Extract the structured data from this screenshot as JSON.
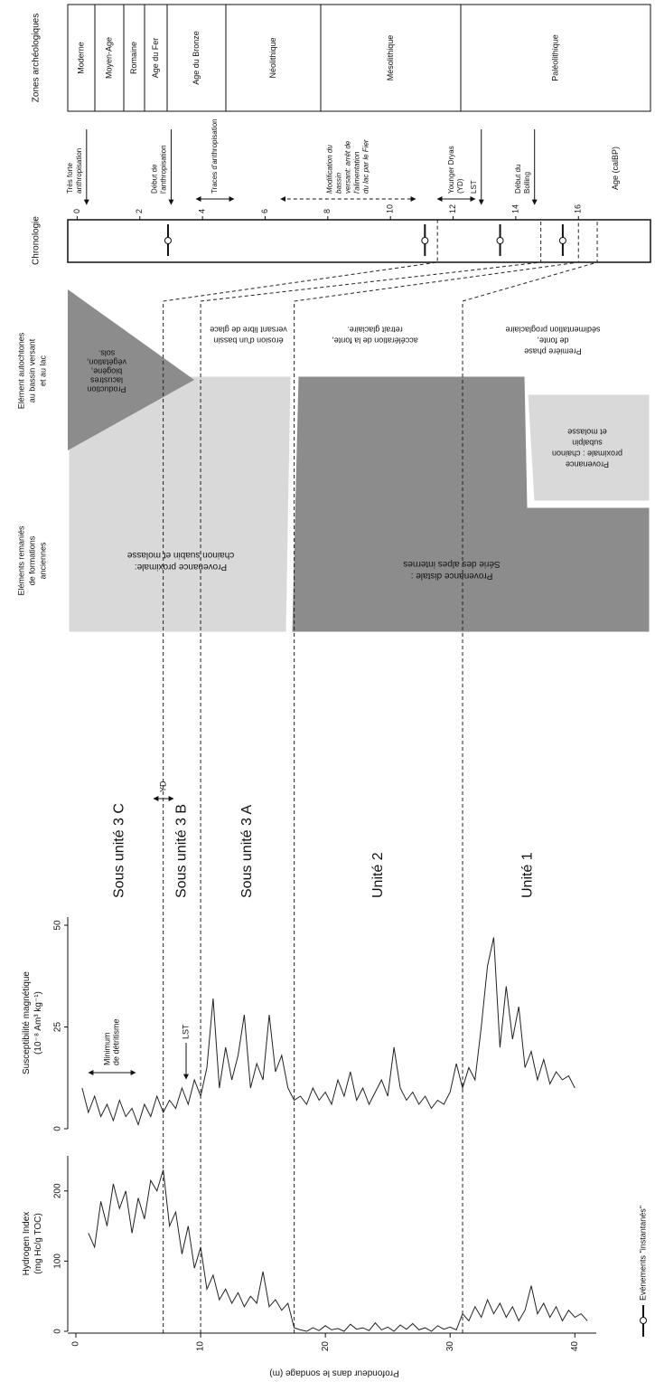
{
  "chart_data": [
    {
      "type": "line",
      "title": [
        "Hydrogen Index",
        "(mg Hc/g TOC)"
      ],
      "xlabel": "Profondeur dans le sondage (m)",
      "x": [
        1,
        1.5,
        2,
        2.5,
        3,
        3.5,
        4,
        4.5,
        5,
        5.5,
        6,
        6.5,
        7,
        7.5,
        8,
        8.5,
        9,
        9.5,
        10,
        10.5,
        11,
        11.5,
        12,
        12.5,
        13,
        13.5,
        14,
        14.5,
        15,
        15.5,
        16,
        16.5,
        17,
        17.5,
        18,
        18.5,
        19,
        19.5,
        20,
        20.5,
        21,
        21.5,
        22,
        22.5,
        23,
        23.5,
        24,
        24.5,
        25,
        25.5,
        26,
        26.5,
        27,
        27.5,
        28,
        28.5,
        29,
        29.5,
        30,
        30.5,
        31,
        31.5,
        32,
        32.5,
        33,
        33.5,
        34,
        34.5,
        35,
        35.5,
        36,
        36.5,
        37,
        37.5,
        38,
        38.5,
        39,
        39.5,
        40,
        40.5,
        41
      ],
      "values": [
        140,
        120,
        185,
        150,
        210,
        175,
        200,
        140,
        190,
        160,
        215,
        200,
        230,
        150,
        170,
        110,
        150,
        90,
        120,
        60,
        80,
        45,
        60,
        40,
        55,
        35,
        50,
        40,
        85,
        35,
        45,
        30,
        40,
        5,
        2,
        0,
        5,
        1,
        8,
        2,
        4,
        0,
        10,
        3,
        5,
        1,
        12,
        2,
        6,
        0,
        9,
        3,
        11,
        2,
        5,
        0,
        8,
        3,
        6,
        2,
        25,
        15,
        35,
        20,
        45,
        25,
        40,
        20,
        35,
        15,
        30,
        65,
        25,
        40,
        20,
        35,
        15,
        30,
        20,
        25,
        15
      ],
      "xlim": [
        0,
        41.5
      ],
      "xticks": [
        0,
        10,
        20,
        30,
        40
      ],
      "ylim": [
        0,
        250
      ],
      "yticks": [
        0,
        100,
        200
      ],
      "color": "#222222"
    },
    {
      "type": "line",
      "title": [
        "Susceptibilité magnétique",
        "(10⁻⁸ Am³ kg⁻¹)"
      ],
      "x": [
        0.5,
        1,
        1.5,
        2,
        2.5,
        3,
        3.5,
        4,
        4.5,
        5,
        5.5,
        6,
        6.5,
        7,
        7.5,
        8,
        8.5,
        9,
        9.5,
        10,
        10.5,
        11,
        11.5,
        12,
        12.5,
        13,
        13.5,
        14,
        14.5,
        15,
        15.5,
        16,
        16.5,
        17,
        17.5,
        18,
        18.5,
        19,
        19.5,
        20,
        20.5,
        21,
        21.5,
        22,
        22.5,
        23,
        23.5,
        24,
        24.5,
        25,
        25.5,
        26,
        26.5,
        27,
        27.5,
        28,
        28.5,
        29,
        29.5,
        30,
        30.5,
        31,
        31.5,
        32,
        32.5,
        33,
        33.5,
        34,
        34.5,
        35,
        35.5,
        36,
        36.5,
        37,
        37.5,
        38,
        38.5,
        39,
        39.5,
        40
      ],
      "values": [
        10,
        4,
        8,
        3,
        6,
        2,
        7,
        3,
        5,
        1,
        6,
        3,
        8,
        4,
        7,
        5,
        10,
        6,
        12,
        8,
        15,
        32,
        10,
        20,
        12,
        18,
        28,
        10,
        16,
        12,
        28,
        14,
        18,
        10,
        7,
        8,
        6,
        10,
        7,
        9,
        6,
        12,
        8,
        14,
        7,
        10,
        6,
        9,
        12,
        8,
        20,
        10,
        7,
        9,
        6,
        8,
        5,
        7,
        6,
        9,
        16,
        10,
        15,
        12,
        25,
        40,
        47,
        20,
        35,
        22,
        30,
        15,
        19,
        12,
        17,
        11,
        14,
        12,
        13,
        10
      ],
      "ylim": [
        0,
        52
      ],
      "yticks": [
        0,
        25,
        50
      ],
      "color": "#222222",
      "annotations": {
        "minimum": [
          "Minimum",
          "de détritisme"
        ],
        "lst": "LST"
      }
    }
  ],
  "units": [
    "Sous unité 3 C",
    "Sous unité 3 B",
    "Sous unité 3 A",
    "Unité 2",
    "Unité 1"
  ],
  "unit_boundaries": [
    7,
    10,
    17.5,
    31
  ],
  "yd_label": "YD",
  "remanies": {
    "title": [
      "Eléments remaniés",
      "de formations",
      "anciennes"
    ],
    "proximal": [
      "Provenance proximale:",
      "chainon suabin et molasse"
    ],
    "distal": [
      "Provenance distale :",
      "Série des alpes internes"
    ],
    "proximal2": [
      "Provenance",
      "proximale : chainon",
      "subalpin",
      "et molasse"
    ]
  },
  "autochtones": {
    "title": [
      "Elément autochtones",
      "au bassin versant",
      "et au lac"
    ],
    "production": [
      "Production",
      "lacustres",
      "biogène,",
      "végétation,",
      "sols."
    ],
    "erosion": [
      "érosion d'un bassin",
      "versant libre de glace"
    ],
    "acceleration": [
      "accélération de la fonte,",
      "retrait glaciaire."
    ],
    "premiere": [
      "Première phase",
      "de fonte,",
      "sédimentation proglaciaire"
    ]
  },
  "chronology": {
    "title": "Chronologie",
    "age_label": "Age (calBP)",
    "lim": [
      -0.3,
      18.3
    ],
    "ticks": [
      0,
      2,
      4,
      6,
      8,
      10,
      12,
      14,
      16
    ],
    "dates": [
      2.9,
      11.1,
      13.5,
      15.5
    ],
    "boundary_ages": [
      11.5,
      14.8,
      16,
      16.6
    ],
    "events": [
      {
        "text": [
          "Très forte",
          "anthropisation"
        ],
        "age": 0.3
      },
      {
        "text": [
          "Début de",
          "l'anthropisation"
        ],
        "age": 3.0
      },
      {
        "text": [
          "Traces d'anthropisation"
        ],
        "range": [
          3.8,
          5.0
        ]
      },
      {
        "text": [
          "Modification du",
          "bassin",
          "versant: arrêt de",
          "l'alimentation",
          "du lac par le Fier"
        ],
        "range": [
          6.5,
          10.8
        ],
        "dashed": true
      },
      {
        "text": [
          "Younger Dryas",
          "(YD)"
        ],
        "range": [
          11.5,
          12.7
        ]
      },
      {
        "text": [
          "LST"
        ],
        "age": 12.9
      },
      {
        "text": [
          "Début du",
          "Bolling"
        ],
        "age": 14.6
      }
    ]
  },
  "zones": {
    "title": "Zones archéologiques",
    "labels": [
      "Moderne",
      "Moyen-Age",
      "Romaine",
      "Age du Fer",
      "Age du Bronze",
      "Néolithique",
      "Mésolithique",
      "Paléolithique"
    ]
  },
  "legend": "Evénements \"instantanés\""
}
